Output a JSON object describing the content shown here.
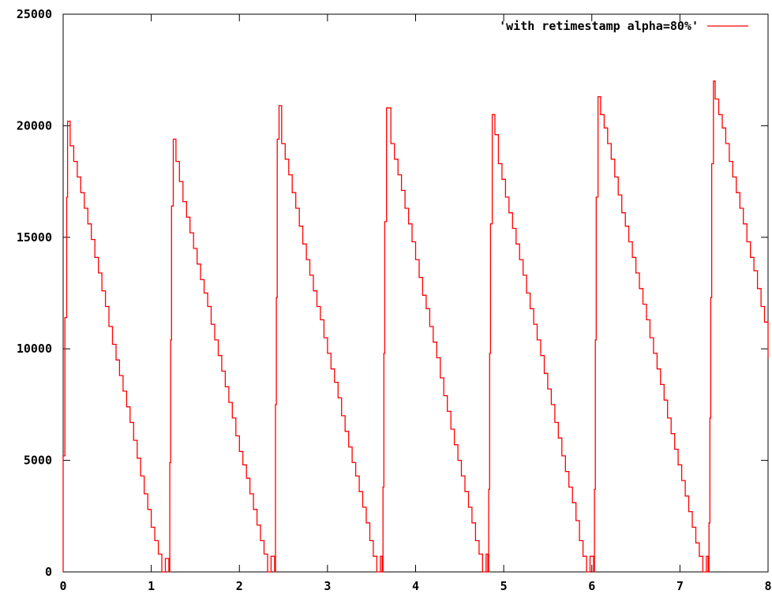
{
  "chart_data": {
    "type": "line",
    "title": "",
    "xlabel": "",
    "ylabel": "",
    "xlim": [
      0,
      8
    ],
    "ylim": [
      0,
      25000
    ],
    "x_ticks": [
      "0",
      "1",
      "2",
      "3",
      "4",
      "5",
      "6",
      "7",
      "8"
    ],
    "y_ticks": [
      "0",
      "5000",
      "10000",
      "15000",
      "20000",
      "25000"
    ],
    "grid": false,
    "legend_position": "top-right",
    "series": [
      {
        "name": "'with retimestamp alpha=80%'",
        "color": "#ff0000",
        "points": [
          [
            0.0,
            0
          ],
          [
            0.0,
            5200
          ],
          [
            0.02,
            11400
          ],
          [
            0.04,
            16800
          ],
          [
            0.05,
            20200
          ],
          [
            0.08,
            19100
          ],
          [
            0.12,
            18400
          ],
          [
            0.16,
            17700
          ],
          [
            0.2,
            17000
          ],
          [
            0.24,
            16300
          ],
          [
            0.28,
            15600
          ],
          [
            0.32,
            14900
          ],
          [
            0.36,
            14100
          ],
          [
            0.4,
            13400
          ],
          [
            0.44,
            12600
          ],
          [
            0.48,
            11900
          ],
          [
            0.52,
            11000
          ],
          [
            0.56,
            10200
          ],
          [
            0.6,
            9500
          ],
          [
            0.64,
            8800
          ],
          [
            0.68,
            8100
          ],
          [
            0.72,
            7400
          ],
          [
            0.76,
            6700
          ],
          [
            0.8,
            5900
          ],
          [
            0.84,
            5100
          ],
          [
            0.88,
            4300
          ],
          [
            0.92,
            3500
          ],
          [
            0.96,
            2800
          ],
          [
            1.0,
            2000
          ],
          [
            1.04,
            1400
          ],
          [
            1.08,
            800
          ],
          [
            1.12,
            0
          ],
          [
            1.16,
            600
          ],
          [
            1.2,
            0
          ],
          [
            1.21,
            4900
          ],
          [
            1.22,
            10400
          ],
          [
            1.23,
            16400
          ],
          [
            1.25,
            19400
          ],
          [
            1.28,
            18400
          ],
          [
            1.32,
            17500
          ],
          [
            1.36,
            16600
          ],
          [
            1.4,
            15900
          ],
          [
            1.44,
            15200
          ],
          [
            1.48,
            14500
          ],
          [
            1.52,
            13800
          ],
          [
            1.56,
            13100
          ],
          [
            1.6,
            12500
          ],
          [
            1.64,
            11900
          ],
          [
            1.68,
            11100
          ],
          [
            1.72,
            10400
          ],
          [
            1.76,
            9700
          ],
          [
            1.8,
            9000
          ],
          [
            1.84,
            8300
          ],
          [
            1.88,
            7600
          ],
          [
            1.92,
            6900
          ],
          [
            1.96,
            6100
          ],
          [
            2.0,
            5400
          ],
          [
            2.04,
            4800
          ],
          [
            2.08,
            4200
          ],
          [
            2.12,
            3500
          ],
          [
            2.16,
            2800
          ],
          [
            2.2,
            2100
          ],
          [
            2.24,
            1400
          ],
          [
            2.28,
            800
          ],
          [
            2.32,
            0
          ],
          [
            2.36,
            700
          ],
          [
            2.4,
            0
          ],
          [
            2.41,
            7500
          ],
          [
            2.42,
            12300
          ],
          [
            2.43,
            19400
          ],
          [
            2.45,
            20900
          ],
          [
            2.48,
            19200
          ],
          [
            2.52,
            18500
          ],
          [
            2.56,
            17800
          ],
          [
            2.6,
            17000
          ],
          [
            2.64,
            16300
          ],
          [
            2.68,
            15500
          ],
          [
            2.72,
            14700
          ],
          [
            2.76,
            14000
          ],
          [
            2.8,
            13300
          ],
          [
            2.84,
            12600
          ],
          [
            2.88,
            11900
          ],
          [
            2.92,
            11300
          ],
          [
            2.96,
            10500
          ],
          [
            3.0,
            9800
          ],
          [
            3.04,
            9100
          ],
          [
            3.08,
            8500
          ],
          [
            3.12,
            7800
          ],
          [
            3.16,
            7000
          ],
          [
            3.2,
            6300
          ],
          [
            3.24,
            5600
          ],
          [
            3.28,
            4900
          ],
          [
            3.32,
            4300
          ],
          [
            3.36,
            3600
          ],
          [
            3.4,
            2900
          ],
          [
            3.44,
            2200
          ],
          [
            3.48,
            1400
          ],
          [
            3.52,
            700
          ],
          [
            3.56,
            0
          ],
          [
            3.6,
            700
          ],
          [
            3.62,
            0
          ],
          [
            3.63,
            3800
          ],
          [
            3.64,
            9800
          ],
          [
            3.65,
            15700
          ],
          [
            3.67,
            20800
          ],
          [
            3.72,
            19200
          ],
          [
            3.76,
            18500
          ],
          [
            3.8,
            17800
          ],
          [
            3.84,
            17100
          ],
          [
            3.88,
            16300
          ],
          [
            3.92,
            15600
          ],
          [
            3.96,
            14800
          ],
          [
            4.0,
            14000
          ],
          [
            4.04,
            13200
          ],
          [
            4.08,
            12400
          ],
          [
            4.12,
            11800
          ],
          [
            4.16,
            11000
          ],
          [
            4.2,
            10300
          ],
          [
            4.24,
            9600
          ],
          [
            4.28,
            8700
          ],
          [
            4.32,
            7900
          ],
          [
            4.36,
            7200
          ],
          [
            4.4,
            6400
          ],
          [
            4.44,
            5700
          ],
          [
            4.48,
            5000
          ],
          [
            4.52,
            4300
          ],
          [
            4.56,
            3600
          ],
          [
            4.6,
            2900
          ],
          [
            4.64,
            2200
          ],
          [
            4.68,
            1400
          ],
          [
            4.72,
            800
          ],
          [
            4.76,
            0
          ],
          [
            4.8,
            800
          ],
          [
            4.82,
            0
          ],
          [
            4.83,
            3700
          ],
          [
            4.84,
            9800
          ],
          [
            4.85,
            15600
          ],
          [
            4.87,
            20500
          ],
          [
            4.9,
            19600
          ],
          [
            4.94,
            18300
          ],
          [
            4.98,
            17600
          ],
          [
            5.02,
            16800
          ],
          [
            5.06,
            16100
          ],
          [
            5.1,
            15400
          ],
          [
            5.14,
            14700
          ],
          [
            5.18,
            14000
          ],
          [
            5.22,
            13300
          ],
          [
            5.26,
            12500
          ],
          [
            5.3,
            11800
          ],
          [
            5.34,
            11100
          ],
          [
            5.38,
            10400
          ],
          [
            5.42,
            9700
          ],
          [
            5.46,
            8900
          ],
          [
            5.5,
            8200
          ],
          [
            5.54,
            7500
          ],
          [
            5.58,
            6700
          ],
          [
            5.62,
            6000
          ],
          [
            5.66,
            5200
          ],
          [
            5.7,
            4500
          ],
          [
            5.74,
            3800
          ],
          [
            5.78,
            3100
          ],
          [
            5.82,
            2300
          ],
          [
            5.86,
            1400
          ],
          [
            5.9,
            700
          ],
          [
            5.94,
            0
          ],
          [
            5.98,
            700
          ],
          [
            6.02,
            0
          ],
          [
            6.03,
            3700
          ],
          [
            6.04,
            10400
          ],
          [
            6.05,
            16800
          ],
          [
            6.07,
            21300
          ],
          [
            6.1,
            20500
          ],
          [
            6.14,
            19900
          ],
          [
            6.18,
            19200
          ],
          [
            6.22,
            18500
          ],
          [
            6.26,
            17700
          ],
          [
            6.3,
            16900
          ],
          [
            6.34,
            16100
          ],
          [
            6.38,
            15500
          ],
          [
            6.42,
            14800
          ],
          [
            6.46,
            14100
          ],
          [
            6.5,
            13400
          ],
          [
            6.54,
            12700
          ],
          [
            6.58,
            12000
          ],
          [
            6.62,
            11300
          ],
          [
            6.66,
            10500
          ],
          [
            6.7,
            9800
          ],
          [
            6.74,
            9100
          ],
          [
            6.78,
            8400
          ],
          [
            6.82,
            7700
          ],
          [
            6.86,
            6900
          ],
          [
            6.9,
            6200
          ],
          [
            6.94,
            5500
          ],
          [
            6.98,
            4800
          ],
          [
            7.02,
            4100
          ],
          [
            7.06,
            3400
          ],
          [
            7.1,
            2700
          ],
          [
            7.14,
            2000
          ],
          [
            7.18,
            1300
          ],
          [
            7.22,
            700
          ],
          [
            7.26,
            0
          ],
          [
            7.3,
            700
          ],
          [
            7.32,
            0
          ],
          [
            7.33,
            2200
          ],
          [
            7.34,
            6900
          ],
          [
            7.35,
            12300
          ],
          [
            7.36,
            18300
          ],
          [
            7.38,
            22000
          ],
          [
            7.4,
            21200
          ],
          [
            7.44,
            20500
          ],
          [
            7.48,
            19900
          ],
          [
            7.52,
            19200
          ],
          [
            7.56,
            18400
          ],
          [
            7.6,
            17700
          ],
          [
            7.64,
            17000
          ],
          [
            7.68,
            16300
          ],
          [
            7.72,
            15600
          ],
          [
            7.76,
            14800
          ],
          [
            7.8,
            14100
          ],
          [
            7.84,
            13500
          ],
          [
            7.88,
            12700
          ],
          [
            7.92,
            11900
          ],
          [
            7.96,
            11200
          ],
          [
            8.0,
            10400
          ],
          [
            8.02,
            9600
          ]
        ]
      }
    ]
  }
}
